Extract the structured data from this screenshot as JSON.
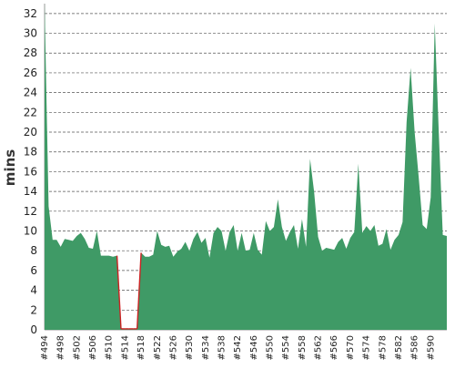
{
  "chart_data": {
    "type": "area",
    "title": "",
    "xlabel": "",
    "ylabel": "mins",
    "ylim": [
      0,
      33
    ],
    "yticks": [
      0,
      2,
      4,
      6,
      8,
      10,
      12,
      14,
      16,
      18,
      20,
      22,
      24,
      26,
      28,
      30,
      32
    ],
    "grid": true,
    "x_start_build": 494,
    "x_tick_labels": [
      "#494",
      "#498",
      "#502",
      "#506",
      "#510",
      "#514",
      "#518",
      "#522",
      "#526",
      "#530",
      "#534",
      "#538",
      "#542",
      "#546",
      "#550",
      "#554",
      "#558",
      "#562",
      "#566",
      "#570",
      "#574",
      "#578",
      "#582",
      "#586",
      "#590"
    ],
    "fill_color": "#3f9a66",
    "low_color": "#cc2222",
    "series": [
      {
        "values": [
          33,
          12.5,
          9.1,
          9.1,
          8.4,
          9.2,
          9.1,
          9.0,
          9.5,
          9.8,
          9.2,
          8.3,
          8.2,
          10.0,
          7.5,
          7.5,
          7.5,
          7.4,
          7.5,
          0.1,
          0.1,
          0.1,
          0.1,
          0.1,
          7.8,
          7.4,
          7.4,
          7.6,
          10.0,
          8.6,
          8.4,
          8.5,
          7.4,
          7.9,
          8.2,
          8.9,
          8.0,
          9.2,
          9.9,
          8.8,
          9.3,
          7.3,
          9.8,
          10.4,
          10.0,
          8.0,
          9.9,
          10.6,
          8.0,
          9.8,
          8.0,
          8.1,
          9.8,
          8.1,
          7.6,
          11.0,
          10.0,
          10.4,
          13.2,
          10.4,
          9.0,
          9.9,
          10.6,
          8.2,
          11.2,
          8.4,
          17.3,
          14.0,
          9.4,
          8.0,
          8.3,
          8.2,
          8.1,
          8.9,
          9.3,
          8.2,
          9.3,
          9.9,
          16.8,
          9.8,
          10.5,
          10.0,
          10.6,
          8.5,
          8.7,
          10.2,
          8.1,
          9.1,
          9.6,
          10.9,
          21.0,
          26.5,
          20.0,
          15.5,
          10.6,
          10.2,
          13.4,
          31.0,
          20.0,
          9.6,
          9.5
        ]
      }
    ]
  }
}
